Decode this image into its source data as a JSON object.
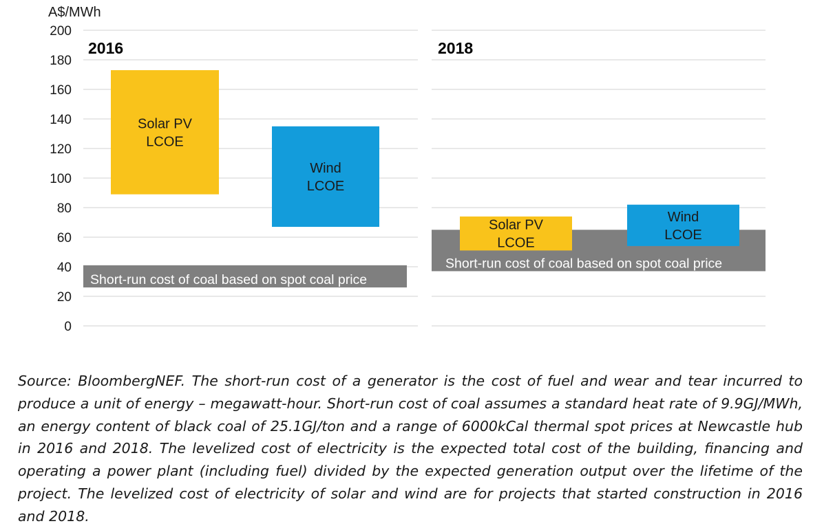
{
  "chart_data": {
    "type": "bar",
    "subtype": "floating-range",
    "ylabel": "A$/MWh",
    "ylim": [
      0,
      200
    ],
    "yticks": [
      0,
      20,
      40,
      60,
      80,
      100,
      120,
      140,
      160,
      180,
      200
    ],
    "grid": true,
    "panels": [
      {
        "title": "2016",
        "bands": [
          {
            "label": "Short-run cost of coal based on spot coal price",
            "low": 26,
            "high": 41,
            "color": "#7f7f7f"
          }
        ],
        "ranges": [
          {
            "label_lines": [
              "Solar PV",
              "LCOE"
            ],
            "low": 89,
            "high": 173,
            "color": "#f9c31b"
          },
          {
            "label_lines": [
              "Wind",
              "LCOE"
            ],
            "low": 67,
            "high": 135,
            "color": "#139cdb"
          }
        ]
      },
      {
        "title": "2018",
        "bands": [
          {
            "label": "Short-run cost of coal based on spot coal price",
            "low": 37,
            "high": 65,
            "color": "#7f7f7f"
          }
        ],
        "ranges": [
          {
            "label_lines": [
              "Solar PV",
              "LCOE"
            ],
            "low": 51,
            "high": 74,
            "color": "#f9c31b"
          },
          {
            "label_lines": [
              "Wind",
              "LCOE"
            ],
            "low": 54,
            "high": 82,
            "color": "#139cdb"
          }
        ]
      }
    ]
  },
  "caption": "Source: BloombergNEF. The short-run cost of a generator is the cost of fuel and wear and tear incurred to produce a unit of energy – megawatt-hour. Short-run cost of coal assumes a standard heat rate of 9.9GJ/MWh, an energy content of black coal of 25.1GJ/ton and a range of 6000kCal thermal spot prices at Newcastle hub in 2016 and 2018. The levelized cost of electricity is the expected total cost of the building, financing and operating a power plant (including fuel) divided by the expected generation output over the lifetime of the project. The levelized cost of electricity of solar and wind are for projects that started construction in 2016 and 2018."
}
